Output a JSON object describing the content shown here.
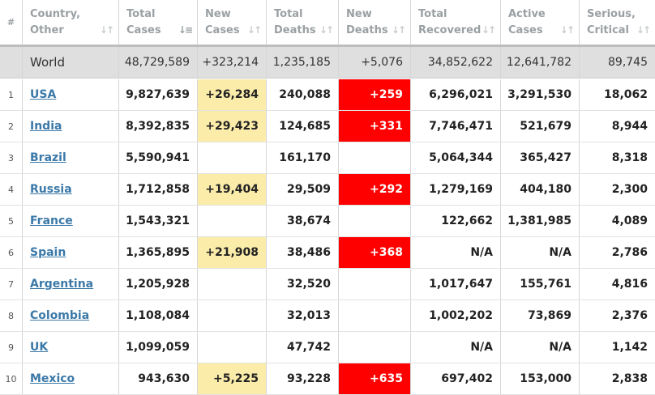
{
  "colors": {
    "new_cases_highlight": "#fbecaa",
    "new_deaths_highlight": "#ff0000",
    "link": "#3b79a8",
    "world_row": "#dfdfdf"
  },
  "header": [
    {
      "line1": "#",
      "line2": ""
    },
    {
      "line1": "Country,",
      "line2": "Other"
    },
    {
      "line1": "Total",
      "line2": "Cases"
    },
    {
      "line1": "New",
      "line2": "Cases"
    },
    {
      "line1": "Total",
      "line2": "Deaths"
    },
    {
      "line1": "New",
      "line2": "Deaths"
    },
    {
      "line1": "Total",
      "line2": "Recovered"
    },
    {
      "line1": "Active",
      "line2": "Cases"
    },
    {
      "line1": "Serious,",
      "line2": "Critical"
    }
  ],
  "world": {
    "name": "World",
    "total_cases": "48,729,589",
    "new_cases": "+323,214",
    "total_deaths": "1,235,185",
    "new_deaths": "+5,076",
    "total_recovered": "34,852,622",
    "active_cases": "12,641,782",
    "serious_critical": "89,745"
  },
  "rows": [
    {
      "rank": "1",
      "country": "USA",
      "total_cases": "9,827,639",
      "new_cases": "+26,284",
      "total_deaths": "240,088",
      "new_deaths": "+259",
      "total_recovered": "6,296,021",
      "active_cases": "3,291,530",
      "serious_critical": "18,062"
    },
    {
      "rank": "2",
      "country": "India",
      "total_cases": "8,392,835",
      "new_cases": "+29,423",
      "total_deaths": "124,685",
      "new_deaths": "+331",
      "total_recovered": "7,746,471",
      "active_cases": "521,679",
      "serious_critical": "8,944"
    },
    {
      "rank": "3",
      "country": "Brazil",
      "total_cases": "5,590,941",
      "new_cases": "",
      "total_deaths": "161,170",
      "new_deaths": "",
      "total_recovered": "5,064,344",
      "active_cases": "365,427",
      "serious_critical": "8,318"
    },
    {
      "rank": "4",
      "country": "Russia",
      "total_cases": "1,712,858",
      "new_cases": "+19,404",
      "total_deaths": "29,509",
      "new_deaths": "+292",
      "total_recovered": "1,279,169",
      "active_cases": "404,180",
      "serious_critical": "2,300"
    },
    {
      "rank": "5",
      "country": "France",
      "total_cases": "1,543,321",
      "new_cases": "",
      "total_deaths": "38,674",
      "new_deaths": "",
      "total_recovered": "122,662",
      "active_cases": "1,381,985",
      "serious_critical": "4,089"
    },
    {
      "rank": "6",
      "country": "Spain",
      "total_cases": "1,365,895",
      "new_cases": "+21,908",
      "total_deaths": "38,486",
      "new_deaths": "+368",
      "total_recovered": "N/A",
      "active_cases": "N/A",
      "serious_critical": "2,786"
    },
    {
      "rank": "7",
      "country": "Argentina",
      "total_cases": "1,205,928",
      "new_cases": "",
      "total_deaths": "32,520",
      "new_deaths": "",
      "total_recovered": "1,017,647",
      "active_cases": "155,761",
      "serious_critical": "4,816"
    },
    {
      "rank": "8",
      "country": "Colombia",
      "total_cases": "1,108,084",
      "new_cases": "",
      "total_deaths": "32,013",
      "new_deaths": "",
      "total_recovered": "1,002,202",
      "active_cases": "73,869",
      "serious_critical": "2,376"
    },
    {
      "rank": "9",
      "country": "UK",
      "total_cases": "1,099,059",
      "new_cases": "",
      "total_deaths": "47,742",
      "new_deaths": "",
      "total_recovered": "N/A",
      "active_cases": "N/A",
      "serious_critical": "1,142"
    },
    {
      "rank": "10",
      "country": "Mexico",
      "total_cases": "943,630",
      "new_cases": "+5,225",
      "total_deaths": "93,228",
      "new_deaths": "+635",
      "total_recovered": "697,402",
      "active_cases": "153,000",
      "serious_critical": "2,838"
    }
  ]
}
